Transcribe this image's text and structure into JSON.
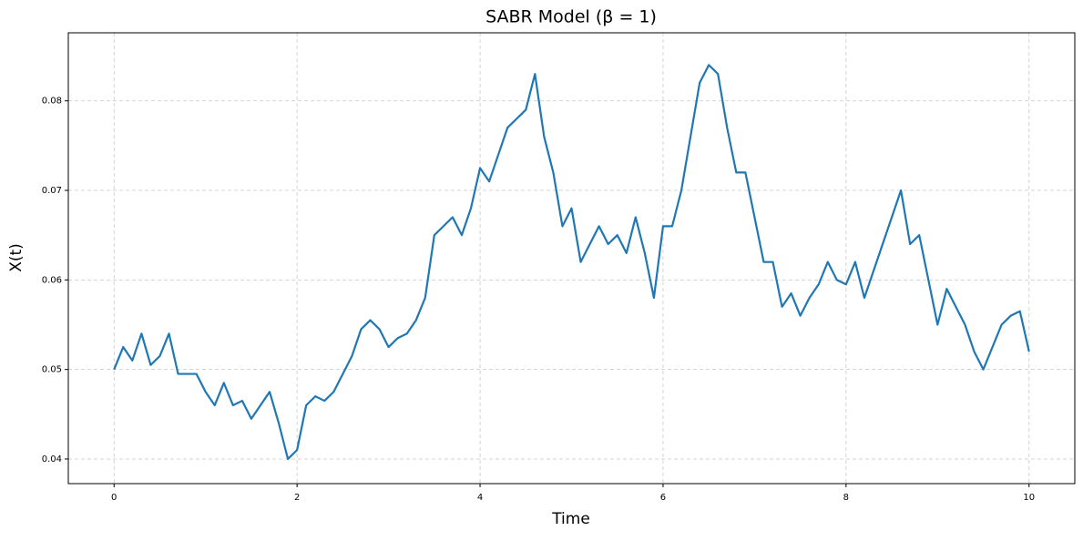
{
  "chart_data": {
    "type": "line",
    "title": "SABR Model (β = 1)",
    "x_label": "Time",
    "y_label": "X(t)",
    "x": [
      0,
      0.1,
      0.2,
      0.3,
      0.4,
      0.5,
      0.6,
      0.7,
      0.8,
      0.9,
      1,
      1.1,
      1.2,
      1.3,
      1.4,
      1.5,
      1.6,
      1.7,
      1.8,
      1.9,
      2,
      2.1,
      2.2,
      2.3,
      2.4,
      2.5,
      2.6,
      2.7,
      2.8,
      2.9,
      3,
      3.1,
      3.2,
      3.3,
      3.4,
      3.5,
      3.6,
      3.7,
      3.8,
      3.9,
      4,
      4.1,
      4.2,
      4.3,
      4.4,
      4.5,
      4.6,
      4.7,
      4.8,
      4.9,
      5,
      5.1,
      5.2,
      5.3,
      5.4,
      5.5,
      5.6,
      5.7,
      5.8,
      5.9,
      6,
      6.1,
      6.2,
      6.3,
      6.4,
      6.5,
      6.6,
      6.7,
      6.8,
      6.9,
      7,
      7.1,
      7.2,
      7.3,
      7.4,
      7.5,
      7.6,
      7.7,
      7.8,
      7.9,
      8,
      8.1,
      8.2,
      8.3,
      8.4,
      8.5,
      8.6,
      8.7,
      8.8,
      8.9,
      9,
      9.1,
      9.2,
      9.3,
      9.4,
      9.5,
      9.6,
      9.7,
      9.8,
      9.9,
      10
    ],
    "series": [
      {
        "color": "#1f77b4",
        "values": [
          0.05,
          0.0525,
          0.051,
          0.054,
          0.0505,
          0.0515,
          0.054,
          0.0495,
          0.0495,
          0.0495,
          0.0475,
          0.046,
          0.0485,
          0.046,
          0.0465,
          0.0445,
          0.046,
          0.0475,
          0.044,
          0.04,
          0.041,
          0.046,
          0.047,
          0.0465,
          0.0475,
          0.0495,
          0.0515,
          0.0545,
          0.0555,
          0.0545,
          0.0525,
          0.0535,
          0.054,
          0.0555,
          0.058,
          0.065,
          0.066,
          0.067,
          0.065,
          0.068,
          0.0725,
          0.071,
          0.074,
          0.077,
          0.078,
          0.079,
          0.083,
          0.076,
          0.072,
          0.066,
          0.068,
          0.062,
          0.064,
          0.066,
          0.064,
          0.065,
          0.063,
          0.067,
          0.063,
          0.058,
          0.066,
          0.066,
          0.07,
          0.076,
          0.082,
          0.084,
          0.083,
          0.077,
          0.072,
          0.072,
          0.067,
          0.062,
          0.062,
          0.057,
          0.0585,
          0.056,
          0.058,
          0.0595,
          0.062,
          0.06,
          0.0595,
          0.062,
          0.058,
          0.061,
          0.064,
          0.067,
          0.07,
          0.064,
          0.065,
          0.06,
          0.055,
          0.059,
          0.057,
          0.055,
          0.052,
          0.05,
          0.0525,
          0.055,
          0.056,
          0.0565,
          0.052
        ]
      }
    ],
    "xlim": [
      -0.5,
      10.5
    ],
    "ylim": [
      0.03725,
      0.0876
    ],
    "xticks": [
      0,
      2,
      4,
      6,
      8,
      10
    ],
    "yticks": [
      0.04,
      0.05,
      0.06,
      0.07,
      0.08
    ],
    "grid": true
  }
}
